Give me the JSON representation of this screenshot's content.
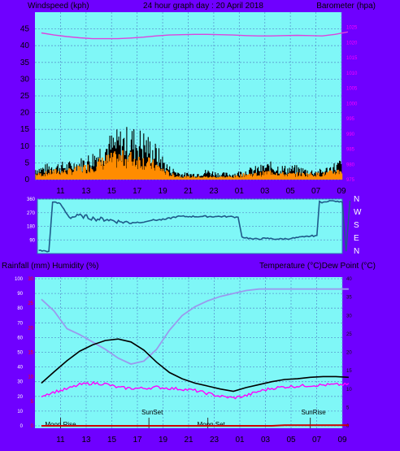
{
  "colors": {
    "background": "#6f00ff",
    "plot_background": "#7ff7f7",
    "grid": "#5a9ad0",
    "wind_speed": "#000000",
    "wind_gust": "#ff8c00",
    "wind_avg": "#3aa0a0",
    "barometer": "#dd44dd",
    "direction": "#1f5a8a",
    "temperature": "#000000",
    "humidity": "#9a9aee",
    "dew_point": "#ff00ff",
    "rainfall": "#cc0000"
  },
  "header": {
    "left_label": "Windspeed (kph)",
    "title": "24 hour graph day : 20 April 2018",
    "right_label": "Barometer (hpa)"
  },
  "lower_header": {
    "left_label": "Rainfall (mm)  Humidity (%)",
    "right_label": "Temperature (°C)Dew Point (°C)"
  },
  "hours": [
    "11",
    "13",
    "15",
    "17",
    "19",
    "21",
    "23",
    "01",
    "03",
    "05",
    "07",
    "09"
  ],
  "chart_data": [
    {
      "type": "line",
      "title": "24 hour graph day : 20 April 2018",
      "xlabel": "",
      "ylabel": "Windspeed (kph)",
      "y2label": "Barometer (hpa)",
      "ylim": [
        0,
        50
      ],
      "y2lim": [
        975,
        1030
      ],
      "y_ticks": [
        "0",
        "5",
        "10",
        "15",
        "20",
        "25",
        "30",
        "35",
        "40",
        "45"
      ],
      "y2_ticks": [
        "975",
        "980",
        "985",
        "990",
        "995",
        "1000",
        "1005",
        "1010",
        "1015",
        "1020",
        "1025"
      ],
      "grid": true,
      "x": [
        9.5,
        10.5,
        11.5,
        12.5,
        13.5,
        14.5,
        15.5,
        16.5,
        17.5,
        18.5,
        19.5,
        20.5,
        21.5,
        22.5,
        23.5,
        24.5,
        25.5,
        26.5,
        27.5,
        28.5,
        29.5,
        30.5,
        31.5,
        32.5,
        33.5
      ],
      "series": [
        {
          "name": "Windspeed",
          "values": [
            4,
            5,
            5,
            6,
            8,
            12,
            14,
            15,
            14,
            10,
            4,
            2,
            2,
            3,
            2,
            2,
            3,
            4,
            5,
            4,
            4,
            3,
            3,
            5,
            7
          ]
        },
        {
          "name": "Gust",
          "values": [
            2,
            3,
            3,
            4,
            5,
            7,
            8,
            8,
            7,
            5,
            2,
            1,
            1,
            1,
            1,
            1,
            2,
            2,
            3,
            2,
            2,
            2,
            2,
            3,
            4
          ]
        },
        {
          "name": "Barometer",
          "values": [
            1023.2,
            1022.5,
            1022.0,
            1021.6,
            1021.3,
            1021.3,
            1021.3,
            1021.5,
            1021.8,
            1022.2,
            1022.5,
            1022.6,
            1022.7,
            1022.7,
            1022.6,
            1022.5,
            1022.3,
            1022.2,
            1022.2,
            1022.3,
            1022.4,
            1022.3,
            1022.2,
            1022.7,
            1023.5
          ]
        }
      ]
    },
    {
      "type": "line",
      "ylabel": "Wind direction",
      "ylim": [
        0,
        360
      ],
      "y_ticks": [
        "90",
        "180",
        "270",
        "360"
      ],
      "direction_labels": [
        "N",
        "W",
        "S",
        "E",
        "N"
      ],
      "x": [
        9.1,
        9.9,
        10.2,
        10.8,
        11.5,
        12.5,
        13.5,
        14.5,
        15.5,
        16.5,
        17.5,
        18.0,
        19.0,
        20.0,
        21.0,
        22.0,
        23.0,
        24.0,
        24.8,
        25.1,
        26.0,
        27.0,
        28.0,
        29.0,
        30.0,
        31.0,
        31.2,
        31.4,
        32.0,
        33.0,
        33.3,
        33.6
      ],
      "series": [
        {
          "name": "Direction",
          "values": [
            20,
            15,
            340,
            330,
            240,
            250,
            230,
            225,
            210,
            205,
            210,
            220,
            225,
            245,
            245,
            245,
            245,
            245,
            240,
            110,
            95,
            100,
            95,
            100,
            110,
            120,
            345,
            335,
            350,
            340,
            15,
            350
          ]
        }
      ]
    },
    {
      "type": "line",
      "ylabel": "Rainfall (mm)  Humidity (%)",
      "y2label": "Temperature (°C)Dew Point (°C)",
      "ylim": [
        0,
        100
      ],
      "y2lim": [
        0,
        40
      ],
      "y_ticks": [
        "0",
        "10",
        "20",
        "30",
        "40",
        "50",
        "60",
        "70",
        "80",
        "90",
        "100"
      ],
      "y_ticks_red": [
        "0",
        "5",
        "10",
        "15",
        "20",
        "25",
        "30"
      ],
      "y2_ticks": [
        "0",
        "5",
        "10",
        "15",
        "20",
        "25",
        "30",
        "35",
        "40"
      ],
      "grid": true,
      "x": [
        9.5,
        10.5,
        11.5,
        12.5,
        13.5,
        14.5,
        15.5,
        16.5,
        17.5,
        18.5,
        19.5,
        20.5,
        21.5,
        22.5,
        23.5,
        24.5,
        25.5,
        26.5,
        27.5,
        28.5,
        29.5,
        30.5,
        31.5,
        32.5,
        33.5
      ],
      "series": [
        {
          "name": "Temperature",
          "values": [
            11.6,
            14.7,
            17.7,
            20.3,
            22.0,
            23.2,
            23.6,
            22.8,
            20.6,
            17.3,
            14.5,
            12.8,
            11.6,
            10.8,
            10.0,
            9.4,
            10.4,
            11.2,
            12.0,
            12.6,
            12.8,
            13.2,
            13.4,
            13.4,
            13.2
          ]
        },
        {
          "name": "Humidity",
          "values": [
            86,
            78,
            66,
            62,
            57,
            52,
            46,
            42,
            44,
            52,
            65,
            75,
            81,
            85,
            88,
            90,
            92,
            93,
            93,
            93,
            93,
            93,
            93,
            93,
            93
          ]
        },
        {
          "name": "Dew Point",
          "values": [
            8.2,
            9.2,
            10.0,
            11.2,
            11.6,
            11.4,
            10.4,
            10.2,
            10.2,
            10.5,
            10.2,
            10.0,
            9.6,
            8.8,
            8.0,
            7.6,
            8.2,
            9.4,
            10.2,
            10.6,
            10.8,
            11.0,
            11.1,
            11.2,
            11.2
          ]
        },
        {
          "name": "Rainfall",
          "values": [
            0,
            0,
            0,
            0,
            0,
            0,
            0,
            0,
            0,
            0,
            0,
            0,
            0,
            0,
            0,
            0,
            0,
            0,
            0,
            0.4,
            0.4,
            0.4,
            0.4,
            0.4,
            0.4
          ]
        }
      ],
      "annotations": [
        {
          "label": "Moon Rise",
          "x": 11.0
        },
        {
          "label": "SunSet",
          "x": 17.9
        },
        {
          "label": "Moon Set",
          "x": 22.5
        },
        {
          "label": "SunRise",
          "x": 30.5
        }
      ]
    }
  ]
}
